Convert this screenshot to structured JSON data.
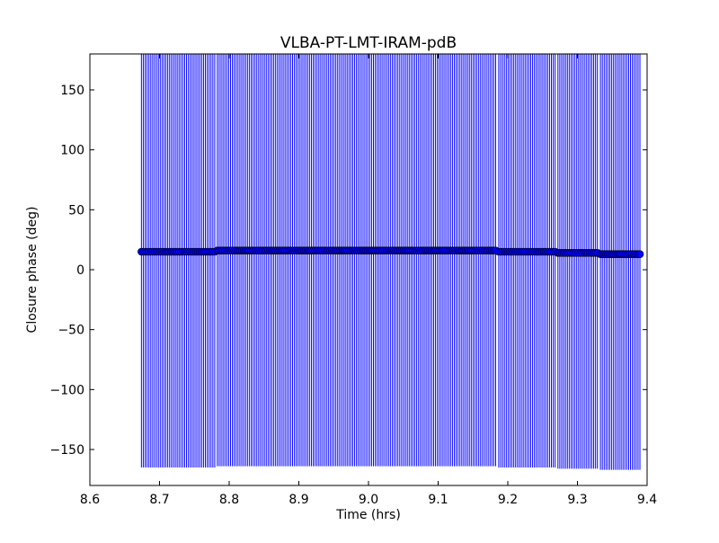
{
  "chart_data": {
    "type": "scatter",
    "title": "VLBA-PT-LMT-IRAM-pdB",
    "xlabel": "Time (hrs)",
    "ylabel": "Closure phase (deg)",
    "xlim": [
      8.6,
      9.4
    ],
    "ylim": [
      -180,
      180
    ],
    "xticks": [
      "8.6",
      "8.7",
      "8.8",
      "8.9",
      "9.0",
      "9.1",
      "9.2",
      "9.3",
      "9.4"
    ],
    "yticks": [
      "−150",
      "−100",
      "−50",
      "0",
      "50",
      "100",
      "150"
    ],
    "grid": false,
    "marker_color": "#0000ff",
    "errorbar_color": "#0000ff",
    "segments": [
      {
        "x_start": 8.674,
        "x_end": 8.781,
        "y": 15,
        "yerr": 180
      },
      {
        "x_start": 8.783,
        "x_end": 9.185,
        "y": 16,
        "yerr": 180
      },
      {
        "x_start": 9.187,
        "x_end": 9.27,
        "y": 15,
        "yerr": 180
      },
      {
        "x_start": 9.272,
        "x_end": 9.331,
        "y": 14,
        "yerr": 180
      },
      {
        "x_start": 9.333,
        "x_end": 9.392,
        "y": 13,
        "yerr": 180
      }
    ],
    "sample_interval_hrs": 0.0027
  }
}
